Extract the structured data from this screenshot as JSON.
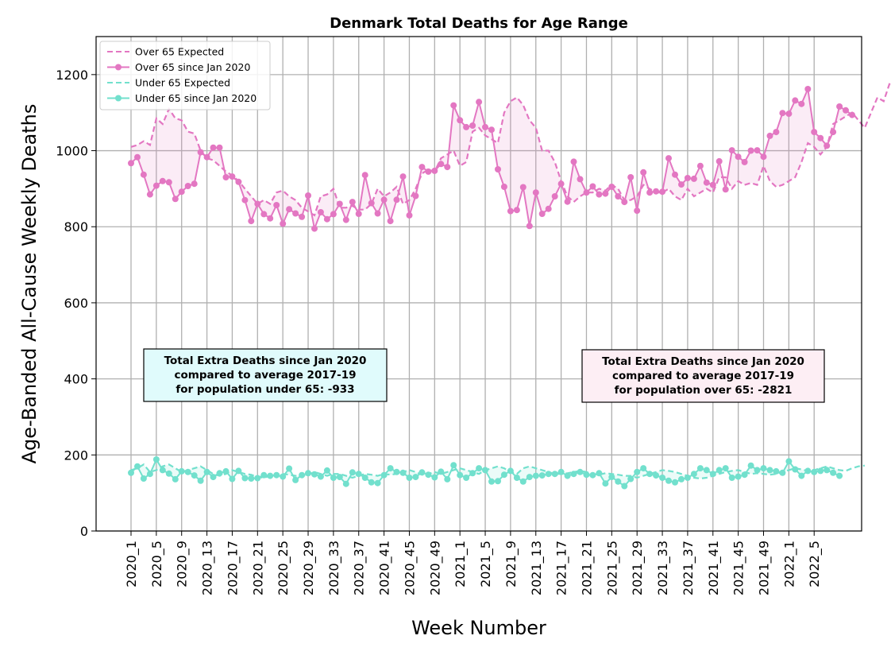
{
  "chart_data": {
    "type": "line",
    "title": "Denmark Total Deaths for Age Range",
    "xlabel": "Week Number",
    "ylabel": "Age-Banded All-Cause Weekly Deaths",
    "ylim": [
      0,
      1300
    ],
    "yticks": [
      0,
      200,
      400,
      600,
      800,
      1000,
      1200
    ],
    "grid": true,
    "legend_position": "top-left",
    "x_tick_labels": [
      "2020_1",
      "2020_5",
      "2020_9",
      "2020_13",
      "2020_17",
      "2020_21",
      "2020_25",
      "2020_29",
      "2020_33",
      "2020_37",
      "2020_41",
      "2020_45",
      "2020_49",
      "2021_1",
      "2021_5",
      "2021_9",
      "2021_13",
      "2021_17",
      "2021_21",
      "2021_25",
      "2021_29",
      "2021_33",
      "2021_37",
      "2021_41",
      "2021_45",
      "2021_49",
      "2022_1",
      "2022_5"
    ],
    "series": [
      {
        "name": "Over 65 Expected",
        "color": "#e377c2",
        "style": "dashed",
        "values": [
          1010,
          1015,
          1025,
          1015,
          1085,
          1070,
          1110,
          1085,
          1080,
          1050,
          1045,
          1000,
          980,
          975,
          960,
          945,
          935,
          920,
          900,
          880,
          860,
          870,
          860,
          890,
          895,
          880,
          870,
          850,
          840,
          830,
          880,
          885,
          900,
          850,
          850,
          855,
          845,
          845,
          860,
          900,
          880,
          890,
          905,
          860,
          870,
          900,
          940,
          950,
          945,
          980,
          990,
          1000,
          960,
          970,
          1050,
          1060,
          1040,
          1030,
          1020,
          1100,
          1130,
          1140,
          1120,
          1080,
          1060,
          1000,
          1000,
          970,
          920,
          880,
          865,
          880,
          890,
          890,
          900,
          895,
          910,
          900,
          870,
          870,
          880,
          910,
          900,
          890,
          890,
          900,
          880,
          870,
          900,
          880,
          890,
          900,
          890,
          930,
          930,
          900,
          920,
          910,
          915,
          910,
          960,
          920,
          905,
          910,
          920,
          930,
          970,
          1020,
          1010,
          990,
          1010,
          1070,
          1080,
          1090,
          1100,
          1080,
          1060,
          1100,
          1140,
          1130,
          1180,
          1160
        ]
      },
      {
        "name": "Over 65 since Jan 2020",
        "color": "#e377c2",
        "style": "solid-markers",
        "values": [
          967,
          983,
          937,
          885,
          908,
          920,
          917,
          873,
          892,
          907,
          913,
          996,
          983,
          1008,
          1008,
          930,
          932,
          918,
          870,
          815,
          860,
          833,
          822,
          857,
          808,
          846,
          835,
          826,
          882,
          795,
          838,
          820,
          833,
          860,
          818,
          865,
          834,
          936,
          862,
          835,
          871,
          815,
          871,
          932,
          830,
          881,
          957,
          945,
          947,
          965,
          957,
          1119,
          1080,
          1062,
          1066,
          1128,
          1062,
          1055,
          951,
          905,
          841,
          844,
          904,
          802,
          890,
          834,
          847,
          880,
          913,
          866,
          971,
          925,
          890,
          906,
          885,
          887,
          905,
          880,
          865,
          930,
          842,
          943,
          890,
          893,
          892,
          980,
          937,
          911,
          928,
          926,
          960,
          916,
          910,
          972,
          898,
          1001,
          984,
          970,
          1000,
          1001,
          984,
          1039,
          1049,
          1099,
          1097,
          1132,
          1123,
          1162,
          1049,
          1033,
          1013,
          1049,
          1116,
          1106,
          1094
        ]
      },
      {
        "name": "Under 65 Expected",
        "color": "#72e0cd",
        "style": "dashed",
        "values": [
          160,
          165,
          175,
          155,
          160,
          170,
          175,
          165,
          155,
          160,
          165,
          170,
          160,
          150,
          145,
          150,
          160,
          155,
          150,
          148,
          142,
          140,
          145,
          150,
          150,
          148,
          145,
          145,
          148,
          155,
          150,
          145,
          150,
          150,
          145,
          140,
          145,
          150,
          148,
          145,
          150,
          148,
          150,
          155,
          160,
          155,
          148,
          150,
          155,
          150,
          155,
          160,
          165,
          160,
          155,
          150,
          160,
          165,
          170,
          165,
          155,
          150,
          165,
          170,
          165,
          160,
          155,
          150,
          150,
          152,
          155,
          158,
          155,
          150,
          148,
          152,
          150,
          148,
          145,
          145,
          140,
          145,
          150,
          155,
          160,
          158,
          155,
          150,
          145,
          140,
          138,
          140,
          145,
          150,
          155,
          158,
          160,
          155,
          150,
          152,
          150,
          148,
          150,
          155,
          160,
          165,
          162,
          158,
          160,
          165,
          170,
          165,
          160,
          158,
          165,
          170,
          172
        ]
      },
      {
        "name": "Under 65 since Jan 2020",
        "color": "#72e0cd",
        "style": "solid-markers",
        "values": [
          153,
          170,
          138,
          150,
          188,
          160,
          151,
          136,
          157,
          155,
          146,
          132,
          155,
          142,
          152,
          157,
          137,
          158,
          139,
          138,
          139,
          147,
          145,
          147,
          143,
          164,
          134,
          147,
          152,
          149,
          143,
          159,
          140,
          142,
          124,
          154,
          150,
          140,
          128,
          126,
          147,
          165,
          155,
          153,
          140,
          142,
          154,
          148,
          141,
          156,
          136,
          173,
          147,
          140,
          152,
          165,
          160,
          130,
          131,
          148,
          158,
          140,
          130,
          142,
          145,
          146,
          150,
          150,
          155,
          145,
          150,
          155,
          148,
          147,
          152,
          125,
          142,
          130,
          118,
          137,
          155,
          165,
          150,
          146,
          140,
          132,
          128,
          136,
          140,
          150,
          165,
          160,
          150,
          160,
          165,
          140,
          143,
          148,
          172,
          160,
          165,
          160,
          157,
          153,
          183,
          162,
          145,
          158,
          155,
          158,
          160,
          153,
          145
        ]
      }
    ],
    "annotations": [
      {
        "lines": [
          "Total Extra Deaths since Jan 2020",
          "compared to average 2017-19",
          "for population under 65: -933"
        ],
        "background": "#e0fbfc"
      },
      {
        "lines": [
          "Total Extra Deaths since Jan 2020",
          "compared to average 2017-19",
          "for population over 65: -2821"
        ],
        "background": "#fdeef4"
      }
    ]
  }
}
